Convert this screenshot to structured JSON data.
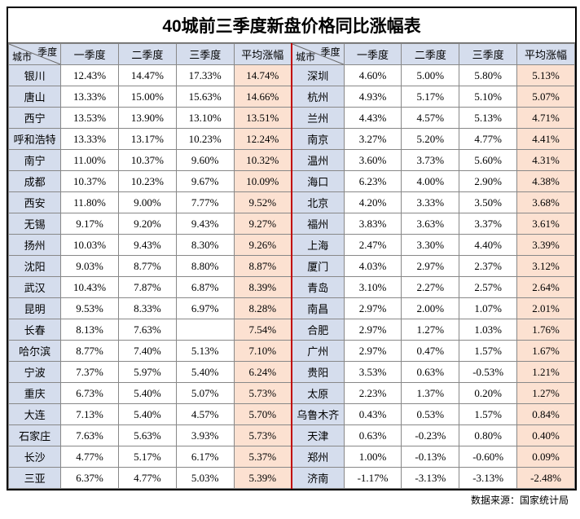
{
  "title": "40城前三季度新盘价格同比涨幅表",
  "header": {
    "diag_top": "季度",
    "diag_bottom": "城市",
    "q1": "一季度",
    "q2": "二季度",
    "q3": "三季度",
    "avg": "平均涨幅"
  },
  "source": "数据来源：国家统计局",
  "colors": {
    "header_bg": "#d5dded",
    "avg_bg": "#fce1d1",
    "mid_border": "#c00000",
    "grid": "#888888"
  },
  "left_rows": [
    {
      "city": "银川",
      "q1": "12.43%",
      "q2": "14.47%",
      "q3": "17.33%",
      "avg": "14.74%"
    },
    {
      "city": "唐山",
      "q1": "13.33%",
      "q2": "15.00%",
      "q3": "15.63%",
      "avg": "14.66%"
    },
    {
      "city": "西宁",
      "q1": "13.53%",
      "q2": "13.90%",
      "q3": "13.10%",
      "avg": "13.51%"
    },
    {
      "city": "呼和浩特",
      "q1": "13.33%",
      "q2": "13.17%",
      "q3": "10.23%",
      "avg": "12.24%"
    },
    {
      "city": "南宁",
      "q1": "11.00%",
      "q2": "10.37%",
      "q3": "9.60%",
      "avg": "10.32%"
    },
    {
      "city": "成都",
      "q1": "10.37%",
      "q2": "10.23%",
      "q3": "9.67%",
      "avg": "10.09%"
    },
    {
      "city": "西安",
      "q1": "11.80%",
      "q2": "9.00%",
      "q3": "7.77%",
      "avg": "9.52%"
    },
    {
      "city": "无锡",
      "q1": "9.17%",
      "q2": "9.20%",
      "q3": "9.43%",
      "avg": "9.27%"
    },
    {
      "city": "扬州",
      "q1": "10.03%",
      "q2": "9.43%",
      "q3": "8.30%",
      "avg": "9.26%"
    },
    {
      "city": "沈阳",
      "q1": "9.03%",
      "q2": "8.77%",
      "q3": "8.80%",
      "avg": "8.87%"
    },
    {
      "city": "武汉",
      "q1": "10.43%",
      "q2": "7.87%",
      "q3": "6.87%",
      "avg": "8.39%"
    },
    {
      "city": "昆明",
      "q1": "9.53%",
      "q2": "8.33%",
      "q3": "6.97%",
      "avg": "8.28%"
    },
    {
      "city": "长春",
      "q1": "8.13%",
      "q2": "7.63%",
      "q3": "",
      "avg": "7.54%"
    },
    {
      "city": "哈尔滨",
      "q1": "8.77%",
      "q2": "7.40%",
      "q3": "5.13%",
      "avg": "7.10%"
    },
    {
      "city": "宁波",
      "q1": "7.37%",
      "q2": "5.97%",
      "q3": "5.40%",
      "avg": "6.24%"
    },
    {
      "city": "重庆",
      "q1": "6.73%",
      "q2": "5.40%",
      "q3": "5.07%",
      "avg": "5.73%"
    },
    {
      "city": "大连",
      "q1": "7.13%",
      "q2": "5.40%",
      "q3": "4.57%",
      "avg": "5.70%"
    },
    {
      "city": "石家庄",
      "q1": "7.63%",
      "q2": "5.63%",
      "q3": "3.93%",
      "avg": "5.73%"
    },
    {
      "city": "长沙",
      "q1": "4.77%",
      "q2": "5.17%",
      "q3": "6.17%",
      "avg": "5.37%"
    },
    {
      "city": "三亚",
      "q1": "6.37%",
      "q2": "4.77%",
      "q3": "5.03%",
      "avg": "5.39%"
    }
  ],
  "right_rows": [
    {
      "city": "深圳",
      "q1": "4.60%",
      "q2": "5.00%",
      "q3": "5.80%",
      "avg": "5.13%"
    },
    {
      "city": "杭州",
      "q1": "4.93%",
      "q2": "5.17%",
      "q3": "5.10%",
      "avg": "5.07%"
    },
    {
      "city": "兰州",
      "q1": "4.43%",
      "q2": "4.57%",
      "q3": "5.13%",
      "avg": "4.71%"
    },
    {
      "city": "南京",
      "q1": "3.27%",
      "q2": "5.20%",
      "q3": "4.77%",
      "avg": "4.41%"
    },
    {
      "city": "温州",
      "q1": "3.60%",
      "q2": "3.73%",
      "q3": "5.60%",
      "avg": "4.31%"
    },
    {
      "city": "海口",
      "q1": "6.23%",
      "q2": "4.00%",
      "q3": "2.90%",
      "avg": "4.38%"
    },
    {
      "city": "北京",
      "q1": "4.20%",
      "q2": "3.33%",
      "q3": "3.50%",
      "avg": "3.68%"
    },
    {
      "city": "福州",
      "q1": "3.83%",
      "q2": "3.63%",
      "q3": "3.37%",
      "avg": "3.61%"
    },
    {
      "city": "上海",
      "q1": "2.47%",
      "q2": "3.30%",
      "q3": "4.40%",
      "avg": "3.39%"
    },
    {
      "city": "厦门",
      "q1": "4.03%",
      "q2": "2.97%",
      "q3": "2.37%",
      "avg": "3.12%"
    },
    {
      "city": "青岛",
      "q1": "3.10%",
      "q2": "2.27%",
      "q3": "2.57%",
      "avg": "2.64%"
    },
    {
      "city": "南昌",
      "q1": "2.97%",
      "q2": "2.00%",
      "q3": "1.07%",
      "avg": "2.01%"
    },
    {
      "city": "合肥",
      "q1": "2.97%",
      "q2": "1.27%",
      "q3": "1.03%",
      "avg": "1.76%"
    },
    {
      "city": "广州",
      "q1": "2.97%",
      "q2": "0.47%",
      "q3": "1.57%",
      "avg": "1.67%"
    },
    {
      "city": "贵阳",
      "q1": "3.53%",
      "q2": "0.63%",
      "q3": "-0.53%",
      "avg": "1.21%"
    },
    {
      "city": "太原",
      "q1": "2.23%",
      "q2": "1.37%",
      "q3": "0.20%",
      "avg": "1.27%"
    },
    {
      "city": "乌鲁木齐",
      "q1": "0.43%",
      "q2": "0.53%",
      "q3": "1.57%",
      "avg": "0.84%"
    },
    {
      "city": "天津",
      "q1": "0.63%",
      "q2": "-0.23%",
      "q3": "0.80%",
      "avg": "0.40%"
    },
    {
      "city": "郑州",
      "q1": "1.00%",
      "q2": "-0.13%",
      "q3": "-0.60%",
      "avg": "0.09%"
    },
    {
      "city": "济南",
      "q1": "-1.17%",
      "q2": "-3.13%",
      "q3": "-3.13%",
      "avg": "-2.48%"
    }
  ]
}
